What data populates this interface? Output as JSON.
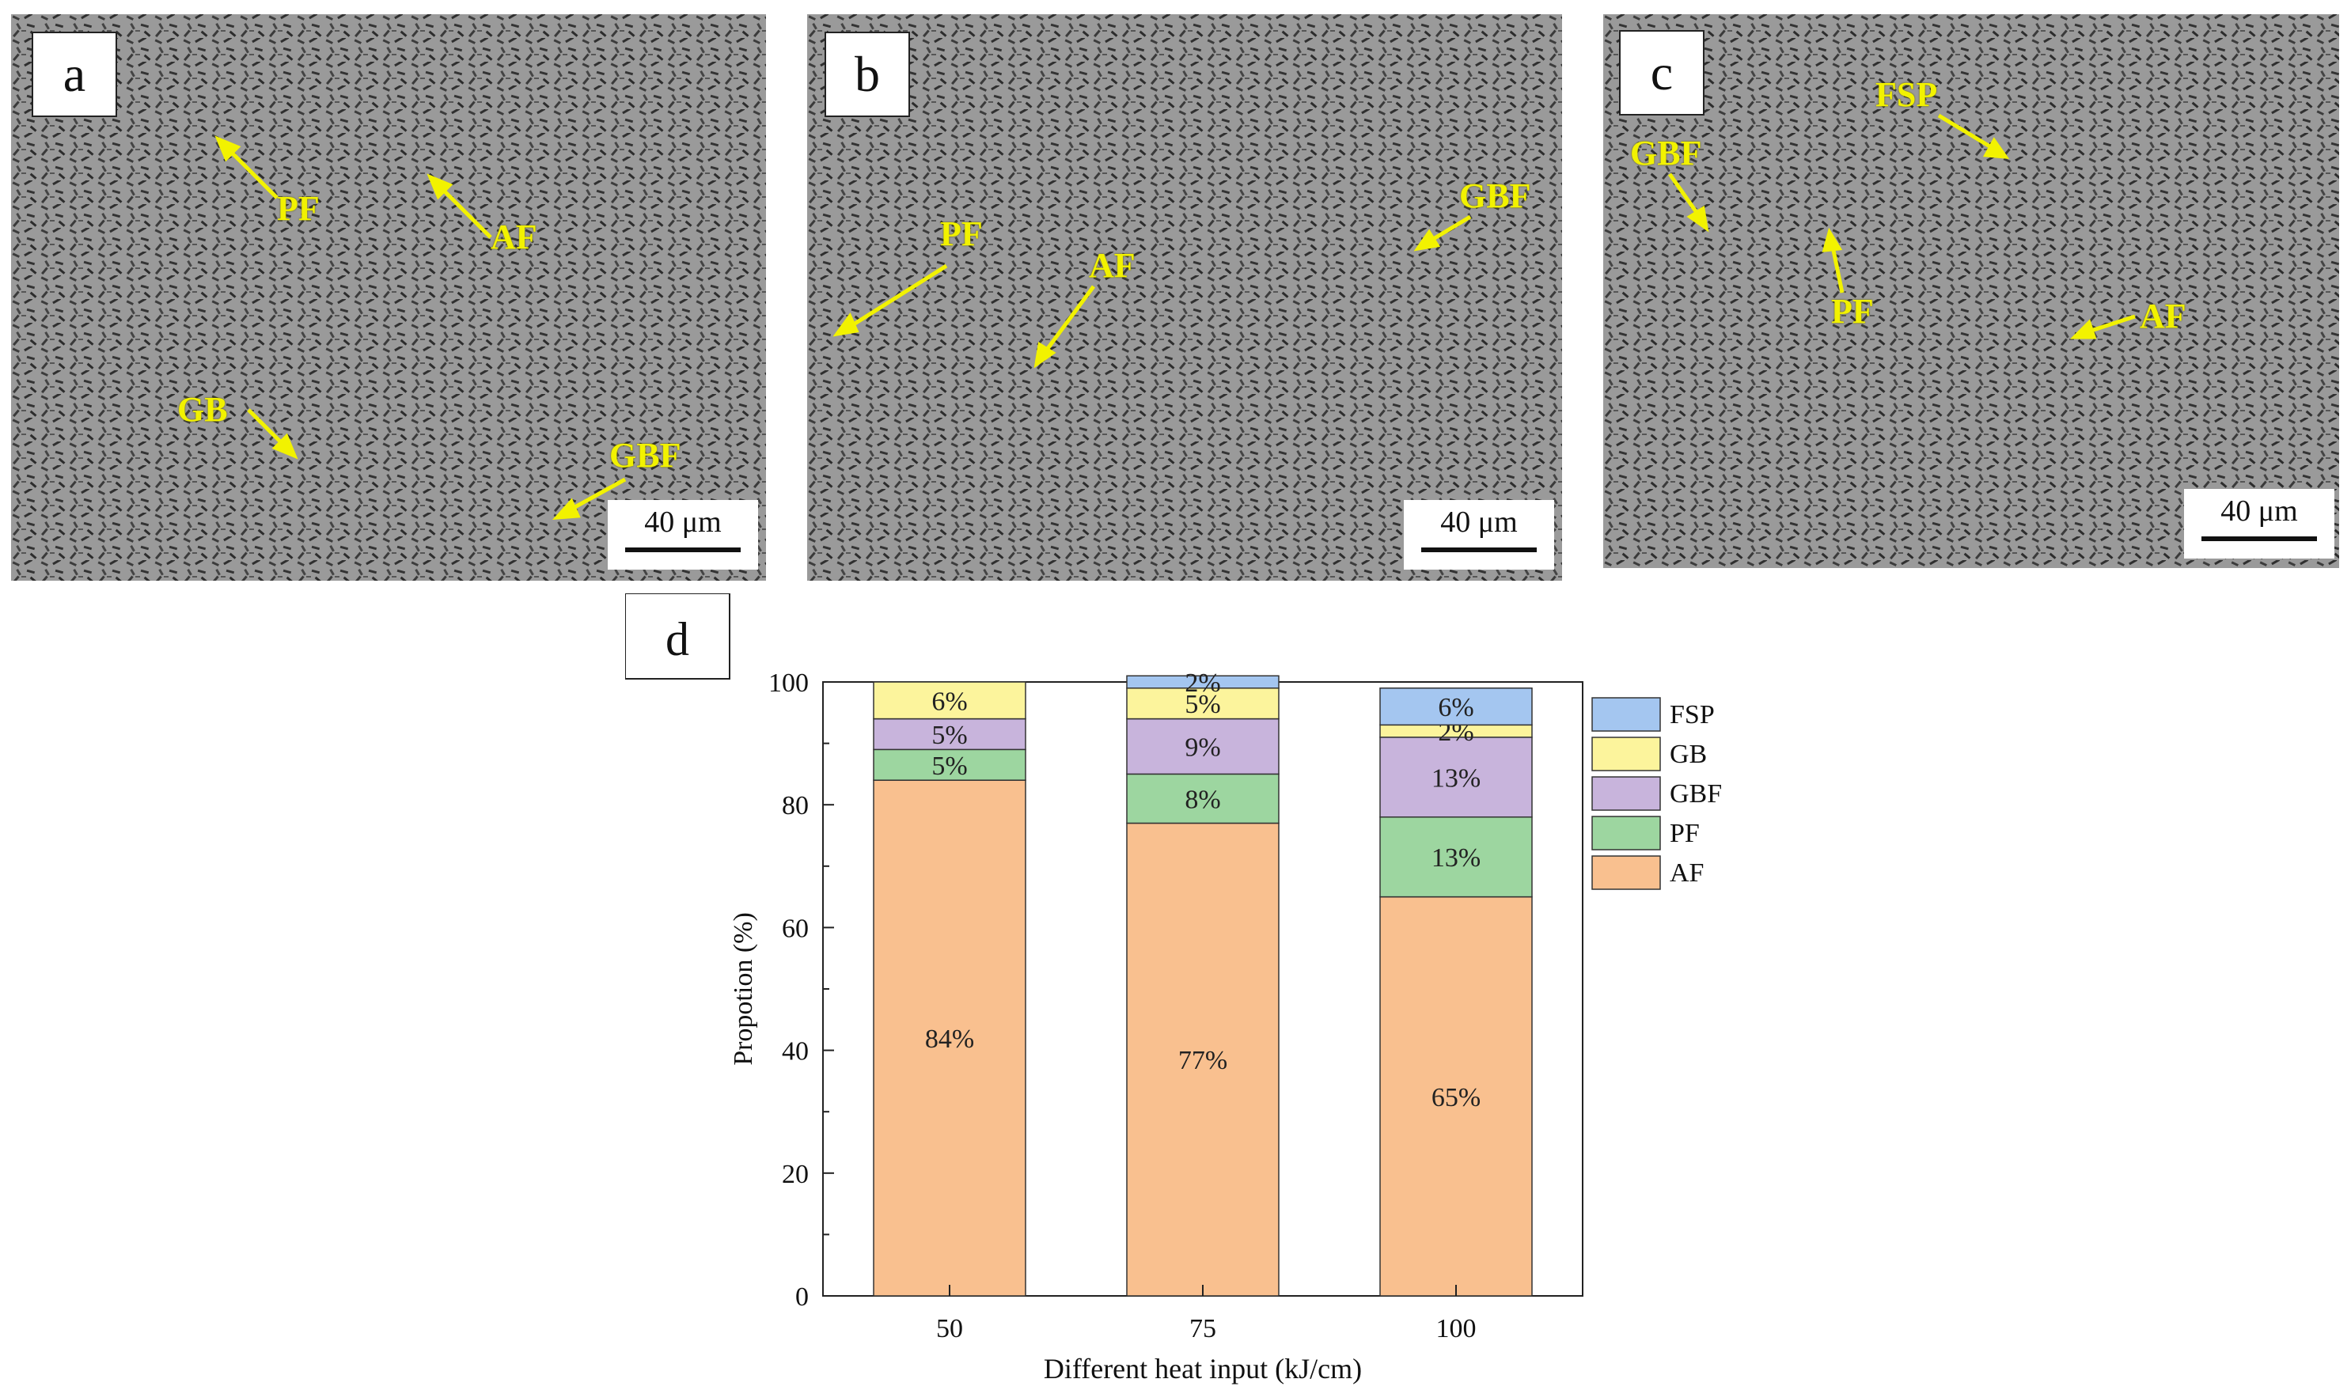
{
  "panels": [
    {
      "label": "a",
      "scale": "40 μm",
      "annotations": [
        "PF",
        "AF",
        "GB",
        "GBF"
      ]
    },
    {
      "label": "b",
      "scale": "40 μm",
      "annotations": [
        "PF",
        "AF",
        "GBF"
      ]
    },
    {
      "label": "c",
      "scale": "40 μm",
      "annotations": [
        "GBF",
        "FSP",
        "PF",
        "AF"
      ]
    }
  ],
  "chart_label": "d",
  "colors": {
    "AF": "#f9c08f",
    "PF": "#9dd6a0",
    "GBF": "#c8b4dc",
    "GB": "#fcf49c",
    "FSP": "#a4c6f0",
    "annotation": "#f2f200"
  },
  "chart_data": {
    "type": "bar",
    "stacked": true,
    "title": "",
    "xlabel": "Different heat input (kJ/cm)",
    "ylabel": "Propotion (%)",
    "ylim": [
      0,
      100
    ],
    "yticks": [
      "0",
      "20",
      "40",
      "60",
      "80",
      "100"
    ],
    "categories": [
      "50",
      "75",
      "100"
    ],
    "series": [
      {
        "name": "AF",
        "values": [
          84,
          77,
          65
        ],
        "labels": [
          "84%",
          "77%",
          "65%"
        ]
      },
      {
        "name": "PF",
        "values": [
          5,
          8,
          13
        ],
        "labels": [
          "5%",
          "8%",
          "13%"
        ]
      },
      {
        "name": "GBF",
        "values": [
          5,
          9,
          13
        ],
        "labels": [
          "5%",
          "9%",
          "13%"
        ]
      },
      {
        "name": "GB",
        "values": [
          6,
          5,
          2
        ],
        "labels": [
          "6%",
          "5%",
          "2%"
        ]
      },
      {
        "name": "FSP",
        "values": [
          0,
          2,
          6
        ],
        "labels": [
          "",
          "2%",
          "6%"
        ]
      }
    ],
    "legend": [
      "FSP",
      "GB",
      "GBF",
      "PF",
      "AF"
    ],
    "legend_position": "right"
  }
}
